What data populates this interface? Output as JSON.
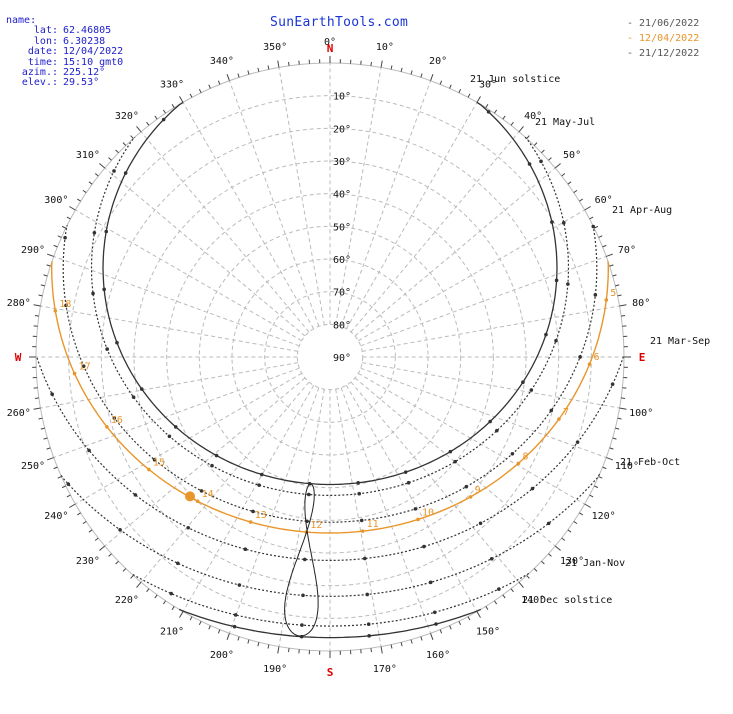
{
  "brand": "SunEarthTools.com",
  "info": [
    {
      "key": "name:",
      "value": ""
    },
    {
      "key": "lat:",
      "value": "62.46805"
    },
    {
      "key": "lon:",
      "value": "6.30238"
    },
    {
      "key": "date:",
      "value": "12/04/2022"
    },
    {
      "key": "time:",
      "value": "15:10 gmt0"
    },
    {
      "key": "azim.:",
      "value": "225.12°"
    },
    {
      "key": "elev.:",
      "value": "29.53°"
    }
  ],
  "legend": [
    {
      "label": "- 21/06/2022",
      "color": "#555555"
    },
    {
      "label": "- 12/04/2022",
      "color": "#e8962a"
    },
    {
      "label": "- 21/12/2022",
      "color": "#555555"
    }
  ],
  "colors": {
    "highlight": "#e8962a",
    "grid": "#bbbbbb",
    "curve": "#333333",
    "cardinal": "#dd0000",
    "text": "#1d1dcc"
  },
  "chart_data": {
    "type": "polar-sun-path",
    "cardinals": [
      {
        "label": "N",
        "az": 0
      },
      {
        "label": "E",
        "az": 90
      },
      {
        "label": "S",
        "az": 180
      },
      {
        "label": "W",
        "az": 270
      }
    ],
    "azimuth_labels": [
      {
        "az": 0,
        "text": "0°"
      },
      {
        "az": 10,
        "text": "10°"
      },
      {
        "az": 20,
        "text": "20°"
      },
      {
        "az": 30,
        "text": "30°"
      },
      {
        "az": 40,
        "text": "40°"
      },
      {
        "az": 50,
        "text": "50°"
      },
      {
        "az": 60,
        "text": "60°"
      },
      {
        "az": 70,
        "text": "70°"
      },
      {
        "az": 80,
        "text": "80°"
      },
      {
        "az": 100,
        "text": "100°"
      },
      {
        "az": 110,
        "text": "110°"
      },
      {
        "az": 120,
        "text": "120°"
      },
      {
        "az": 130,
        "text": "130°"
      },
      {
        "az": 140,
        "text": "140°"
      },
      {
        "az": 150,
        "text": "150°"
      },
      {
        "az": 160,
        "text": "160°"
      },
      {
        "az": 170,
        "text": "170°"
      },
      {
        "az": 190,
        "text": "190°"
      },
      {
        "az": 200,
        "text": "200°"
      },
      {
        "az": 210,
        "text": "210°"
      },
      {
        "az": 220,
        "text": "220°"
      },
      {
        "az": 230,
        "text": "230°"
      },
      {
        "az": 240,
        "text": "240°"
      },
      {
        "az": 250,
        "text": "250°"
      },
      {
        "az": 260,
        "text": "260°"
      },
      {
        "az": 280,
        "text": "280°"
      },
      {
        "az": 290,
        "text": "290°"
      },
      {
        "az": 300,
        "text": "300°"
      },
      {
        "az": 310,
        "text": "310°"
      },
      {
        "az": 320,
        "text": "320°"
      },
      {
        "az": 330,
        "text": "330°"
      },
      {
        "az": 340,
        "text": "340°"
      },
      {
        "az": 350,
        "text": "350°"
      }
    ],
    "elevation_labels": [
      {
        "elev": 10,
        "text": "10°"
      },
      {
        "elev": 20,
        "text": "20°"
      },
      {
        "elev": 30,
        "text": "30°"
      },
      {
        "elev": 40,
        "text": "40°"
      },
      {
        "elev": 50,
        "text": "50°"
      },
      {
        "elev": 60,
        "text": "60°"
      },
      {
        "elev": 70,
        "text": "70°"
      },
      {
        "elev": 80,
        "text": "80°"
      },
      {
        "elev": 90,
        "text": "90°"
      }
    ],
    "date_lines": [
      {
        "label": "21 Jun  solstice",
        "decl": 23.44,
        "style": "solid"
      },
      {
        "label": "21 May-Jul",
        "decl": 20.1,
        "style": "dotted"
      },
      {
        "label": "21 Apr-Aug",
        "decl": 11.9,
        "style": "dotted"
      },
      {
        "label": "21 Mar-Sep",
        "decl": 0.2,
        "style": "dotted"
      },
      {
        "label": "21 Feb-Oct",
        "decl": -10.8,
        "style": "dotted"
      },
      {
        "label": "21 Jan-Nov",
        "decl": -19.9,
        "style": "dotted"
      },
      {
        "label": "21 Dec  solstice",
        "decl": -23.44,
        "style": "solid"
      }
    ],
    "highlight_day": {
      "date": "12/04/2022",
      "decl": 8.6
    },
    "current_sun": {
      "azimuth": 225.12,
      "elevation": 29.53,
      "hour_label": "15"
    },
    "analemma_hour": 12,
    "latitude": 62.46805,
    "longitude": 6.30238,
    "eq_hours": 0
  }
}
